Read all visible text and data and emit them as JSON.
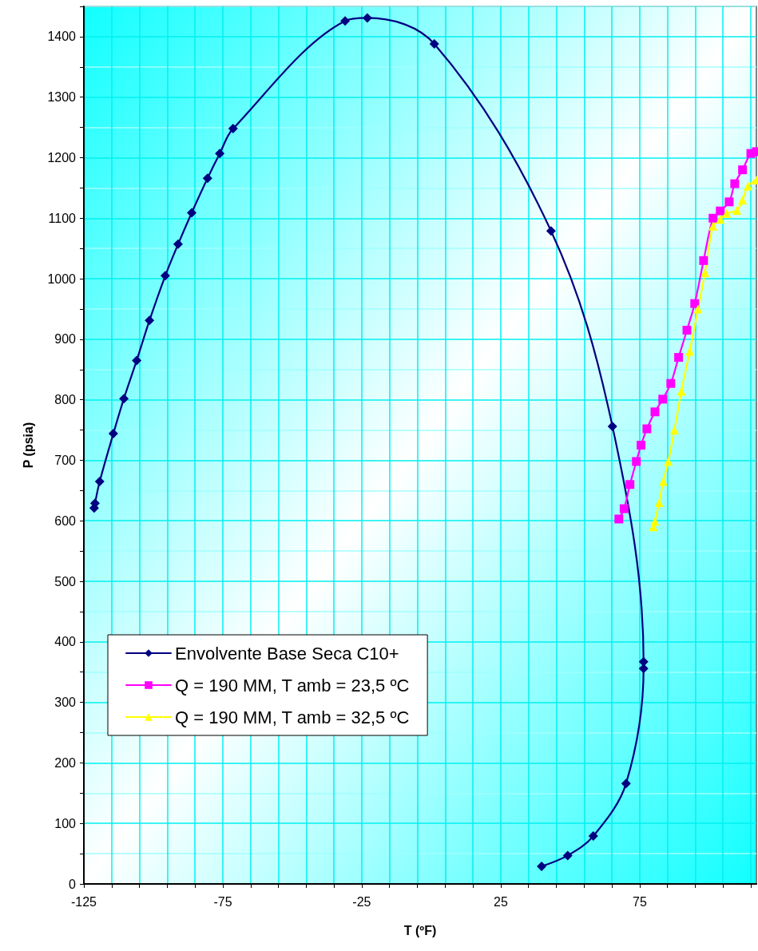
{
  "chart_data": {
    "type": "line",
    "xlabel": "T (ºF)",
    "ylabel": "P (psia)",
    "xlim": [
      -125,
      117
    ],
    "xticks": [
      -125,
      {
        "value": -115,
        "label": null
      },
      {
        "value": -105,
        "label": null
      },
      {
        "value": -95,
        "label": null
      },
      {
        "value": -85,
        "label": null
      },
      -75,
      {
        "value": -65,
        "label": null
      },
      {
        "value": -55,
        "label": null
      },
      {
        "value": -45,
        "label": null
      },
      {
        "value": -35,
        "label": null
      },
      -25,
      {
        "value": -15,
        "label": null
      },
      {
        "value": -5,
        "label": null
      },
      {
        "value": 5,
        "label": null
      },
      {
        "value": 15,
        "label": null
      },
      25,
      {
        "value": 35,
        "label": null
      },
      {
        "value": 45,
        "label": null
      },
      {
        "value": 55,
        "label": null
      },
      {
        "value": 65,
        "label": null
      },
      75,
      {
        "value": 85,
        "label": null
      },
      {
        "value": 95,
        "label": null
      },
      {
        "value": 105,
        "label": null
      },
      {
        "value": 115,
        "label": null
      }
    ],
    "ylim": [
      0,
      1450
    ],
    "yticks": [
      0,
      {
        "value": 50,
        "label": null
      },
      100,
      {
        "value": 150,
        "label": null
      },
      200,
      {
        "value": 250,
        "label": null
      },
      300,
      {
        "value": 350,
        "label": null
      },
      400,
      {
        "value": 450,
        "label": null
      },
      500,
      {
        "value": 550,
        "label": null
      },
      600,
      {
        "value": 650,
        "label": null
      },
      700,
      {
        "value": 750,
        "label": null
      },
      800,
      {
        "value": 850,
        "label": null
      },
      900,
      {
        "value": 950,
        "label": null
      },
      1000,
      {
        "value": 1050,
        "label": null
      },
      1100,
      {
        "value": 1150,
        "label": null
      },
      1200,
      {
        "value": 1250,
        "label": null
      },
      1300,
      {
        "value": 1350,
        "label": null
      },
      1400,
      {
        "value": 1450,
        "label": null
      }
    ],
    "grid": true,
    "legend": "bottom left",
    "line_style": "solid",
    "series": [
      {
        "name": "Envolvente Base Seca C10+",
        "color": "#000080",
        "marker": "diamond",
        "x": [
          -121.3,
          -121,
          -119.3,
          -114.4,
          -110.6,
          -106,
          -101.4,
          -95.7,
          -91.1,
          -86.2,
          -80.5,
          -76.1,
          -71.3,
          -31,
          -23,
          1.1,
          43.1,
          65.2,
          76.4,
          76.4,
          70.1,
          58.3,
          49.1,
          39.7
        ],
        "values": [
          621,
          629,
          665,
          744,
          802,
          865,
          931,
          1005,
          1057,
          1109,
          1166,
          1207,
          1248,
          1426,
          1431,
          1388,
          1079,
          756,
          367,
          356,
          166,
          79,
          47,
          29
        ]
      },
      {
        "name": "Q = 190 MM, T amb = 23,5 ºC",
        "color": "#ff00ff",
        "marker": "square",
        "x": [
          67.5,
          69.4,
          71.5,
          73.8,
          75.5,
          77.6,
          80.5,
          83.3,
          86.2,
          89,
          92,
          94.8,
          98,
          101.4,
          104,
          107.2,
          109.2,
          112,
          115,
          117
        ],
        "values": [
          603,
          620,
          660,
          698,
          725,
          752,
          780,
          801,
          827,
          870,
          915,
          959,
          1030,
          1100,
          1112,
          1127,
          1157,
          1180,
          1207,
          1210
        ]
      },
      {
        "name": "Q = 190 MM, T amb = 32,5 ºC",
        "color": "#ffff00",
        "marker": "triangle",
        "x": [
          79.9,
          80.5,
          82,
          83.5,
          85.3,
          87.5,
          90,
          93,
          96,
          98.5,
          101.4,
          104,
          106.3,
          110,
          112,
          114,
          117
        ],
        "values": [
          590,
          599,
          630,
          665,
          698,
          750,
          814,
          880,
          950,
          1010,
          1087,
          1098,
          1108,
          1113,
          1130,
          1153,
          1163
        ]
      }
    ]
  }
}
